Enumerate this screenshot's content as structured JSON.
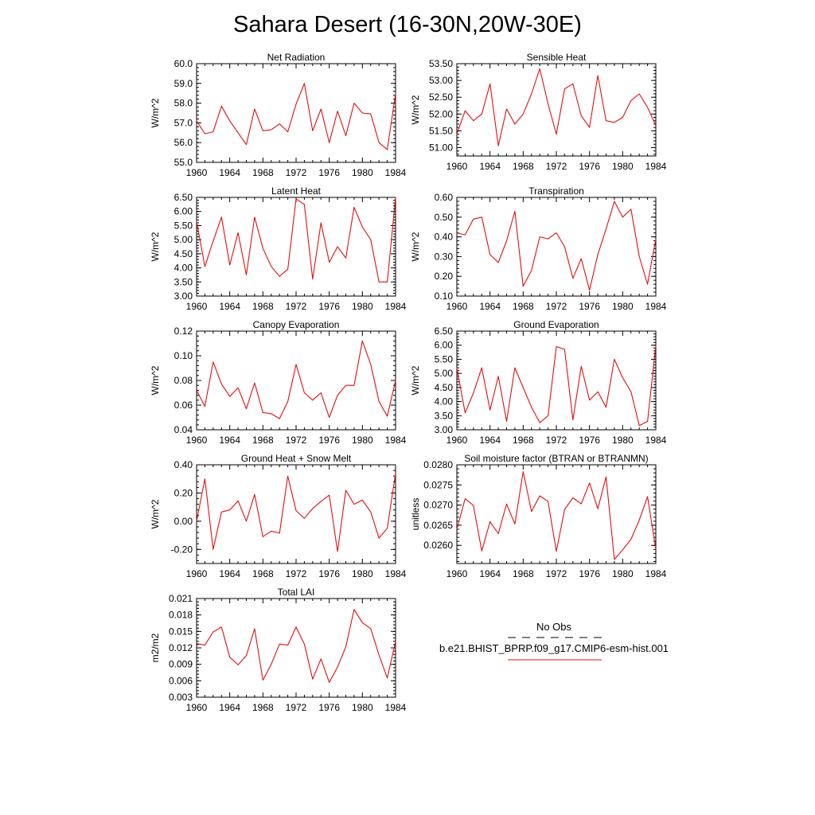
{
  "title": "Sahara Desert (16-30N,20W-30E)",
  "colors": {
    "model": "#e01010",
    "obs": "#000000"
  },
  "legend": {
    "obs_label": "No Obs",
    "model_label": "b.e21.BHIST_BPRP.f09_g17.CMIP6-esm-hist.001"
  },
  "chart_data": [
    {
      "type": "line",
      "title": "Net Radiation",
      "ylabel": "W/m^2",
      "xlim": [
        1960,
        1984
      ],
      "ylim": [
        55.0,
        60.0
      ],
      "xticks": [
        "1960",
        "1964",
        "1968",
        "1972",
        "1976",
        "1980",
        "1984"
      ],
      "yticks": [
        "55.0",
        "56.0",
        "57.0",
        "58.0",
        "59.0",
        "60.0"
      ],
      "x": [
        1960,
        1961,
        1962,
        1963,
        1964,
        1965,
        1966,
        1967,
        1968,
        1969,
        1970,
        1971,
        1972,
        1973,
        1974,
        1975,
        1976,
        1977,
        1978,
        1979,
        1980,
        1981,
        1982,
        1983,
        1984
      ],
      "series": [
        {
          "values": [
            57.1,
            56.45,
            56.55,
            57.85,
            57.1,
            56.5,
            55.9,
            57.7,
            56.6,
            56.65,
            56.95,
            56.55,
            57.95,
            59.0,
            56.6,
            57.7,
            56.0,
            57.6,
            56.35,
            58.0,
            57.5,
            57.45,
            56.0,
            55.65,
            58.5
          ]
        }
      ]
    },
    {
      "type": "line",
      "title": "Sensible Heat",
      "ylabel": "W/m^2",
      "xlim": [
        1960,
        1984
      ],
      "ylim": [
        50.75,
        53.5
      ],
      "xticks": [
        "1960",
        "1964",
        "1968",
        "1972",
        "1976",
        "1980",
        "1984"
      ],
      "yticks": [
        "51.00",
        "51.50",
        "52.00",
        "52.50",
        "53.00",
        "53.50"
      ],
      "x": [
        1960,
        1961,
        1962,
        1963,
        1964,
        1965,
        1966,
        1967,
        1968,
        1969,
        1970,
        1971,
        1972,
        1973,
        1974,
        1975,
        1976,
        1977,
        1978,
        1979,
        1980,
        1981,
        1982,
        1983,
        1984
      ],
      "series": [
        {
          "values": [
            51.4,
            52.1,
            51.8,
            52.0,
            52.9,
            51.05,
            52.15,
            51.7,
            52.0,
            52.6,
            53.35,
            52.3,
            51.4,
            52.75,
            52.9,
            51.95,
            51.6,
            53.15,
            51.8,
            51.75,
            51.9,
            52.4,
            52.6,
            52.2,
            51.65
          ]
        }
      ]
    },
    {
      "type": "line",
      "title": "Latent Heat",
      "ylabel": "W/m^2",
      "xlim": [
        1960,
        1984
      ],
      "ylim": [
        3.0,
        6.5
      ],
      "xticks": [
        "1960",
        "1964",
        "1968",
        "1972",
        "1976",
        "1980",
        "1984"
      ],
      "yticks": [
        "3.00",
        "3.50",
        "4.00",
        "4.50",
        "5.00",
        "5.50",
        "6.00",
        "6.50"
      ],
      "x": [
        1960,
        1961,
        1962,
        1963,
        1964,
        1965,
        1966,
        1967,
        1968,
        1969,
        1970,
        1971,
        1972,
        1973,
        1974,
        1975,
        1976,
        1977,
        1978,
        1979,
        1980,
        1981,
        1982,
        1983,
        1984
      ],
      "series": [
        {
          "values": [
            5.65,
            4.05,
            4.95,
            5.8,
            4.1,
            5.25,
            3.75,
            5.8,
            4.7,
            4.05,
            3.7,
            3.95,
            6.45,
            6.25,
            3.6,
            5.6,
            4.2,
            4.75,
            4.35,
            6.15,
            5.45,
            5.0,
            3.5,
            3.5,
            6.5
          ]
        }
      ]
    },
    {
      "type": "line",
      "title": "Transpiration",
      "ylabel": "W/m^2",
      "xlim": [
        1960,
        1984
      ],
      "ylim": [
        0.1,
        0.6
      ],
      "xticks": [
        "1960",
        "1964",
        "1968",
        "1972",
        "1976",
        "1980",
        "1984"
      ],
      "yticks": [
        "0.10",
        "0.20",
        "0.30",
        "0.40",
        "0.50",
        "0.60"
      ],
      "x": [
        1960,
        1961,
        1962,
        1963,
        1964,
        1965,
        1966,
        1967,
        1968,
        1969,
        1970,
        1971,
        1972,
        1973,
        1974,
        1975,
        1976,
        1977,
        1978,
        1979,
        1980,
        1981,
        1982,
        1983,
        1984
      ],
      "series": [
        {
          "values": [
            0.42,
            0.41,
            0.49,
            0.5,
            0.31,
            0.27,
            0.38,
            0.53,
            0.15,
            0.23,
            0.4,
            0.39,
            0.42,
            0.35,
            0.19,
            0.29,
            0.13,
            0.31,
            0.44,
            0.58,
            0.5,
            0.54,
            0.3,
            0.16,
            0.39
          ]
        }
      ]
    },
    {
      "type": "line",
      "title": "Canopy Evaporation",
      "ylabel": "W/m^2",
      "xlim": [
        1960,
        1984
      ],
      "ylim": [
        0.04,
        0.12
      ],
      "xticks": [
        "1960",
        "1964",
        "1968",
        "1972",
        "1976",
        "1980",
        "1984"
      ],
      "yticks": [
        "0.04",
        "0.06",
        "0.08",
        "0.10",
        "0.12"
      ],
      "x": [
        1960,
        1961,
        1962,
        1963,
        1964,
        1965,
        1966,
        1967,
        1968,
        1969,
        1970,
        1971,
        1972,
        1973,
        1974,
        1975,
        1976,
        1977,
        1978,
        1979,
        1980,
        1981,
        1982,
        1983,
        1984
      ],
      "series": [
        {
          "values": [
            0.072,
            0.059,
            0.095,
            0.077,
            0.067,
            0.074,
            0.057,
            0.078,
            0.054,
            0.053,
            0.049,
            0.063,
            0.093,
            0.07,
            0.064,
            0.07,
            0.05,
            0.068,
            0.076,
            0.076,
            0.112,
            0.093,
            0.063,
            0.051,
            0.08
          ]
        }
      ]
    },
    {
      "type": "line",
      "title": "Ground Evaporation",
      "ylabel": "W/m^2",
      "xlim": [
        1960,
        1984
      ],
      "ylim": [
        3.0,
        6.5
      ],
      "xticks": [
        "1960",
        "1964",
        "1968",
        "1972",
        "1976",
        "1980",
        "1984"
      ],
      "yticks": [
        "3.00",
        "3.50",
        "4.00",
        "4.50",
        "5.00",
        "5.50",
        "6.00",
        "6.50"
      ],
      "x": [
        1960,
        1961,
        1962,
        1963,
        1964,
        1965,
        1966,
        1967,
        1968,
        1969,
        1970,
        1971,
        1972,
        1973,
        1974,
        1975,
        1976,
        1977,
        1978,
        1979,
        1980,
        1981,
        1982,
        1983,
        1984
      ],
      "series": [
        {
          "values": [
            5.2,
            3.6,
            4.3,
            5.2,
            3.7,
            4.9,
            3.3,
            5.2,
            4.5,
            3.8,
            3.25,
            3.5,
            5.95,
            5.85,
            3.35,
            5.25,
            4.05,
            4.35,
            3.8,
            5.5,
            4.85,
            4.35,
            3.15,
            3.3,
            6.0
          ]
        }
      ]
    },
    {
      "type": "line",
      "title": "Ground Heat + Snow Melt",
      "ylabel": "W/m^2",
      "xlim": [
        1960,
        1984
      ],
      "ylim": [
        -0.3,
        0.4
      ],
      "xticks": [
        "1960",
        "1964",
        "1968",
        "1972",
        "1976",
        "1980",
        "1984"
      ],
      "yticks": [
        "-0.20",
        "0.00",
        "0.20",
        "0.40"
      ],
      "x": [
        1960,
        1961,
        1962,
        1963,
        1964,
        1965,
        1966,
        1967,
        1968,
        1969,
        1970,
        1971,
        1972,
        1973,
        1974,
        1975,
        1976,
        1977,
        1978,
        1979,
        1980,
        1981,
        1982,
        1983,
        1984
      ],
      "series": [
        {
          "values": [
            0.0,
            0.3,
            -0.2,
            0.065,
            0.08,
            0.145,
            0.0,
            0.19,
            -0.11,
            -0.07,
            -0.085,
            0.32,
            0.075,
            0.02,
            0.09,
            0.14,
            0.185,
            -0.215,
            0.22,
            0.12,
            0.15,
            0.065,
            -0.12,
            -0.05,
            0.34
          ]
        }
      ]
    },
    {
      "type": "line",
      "title": "Soil moisture factor (BTRAN or BTRANMN)",
      "ylabel": "unitless",
      "xlim": [
        1960,
        1984
      ],
      "ylim": [
        0.02555,
        0.028
      ],
      "xticks": [
        "1960",
        "1964",
        "1968",
        "1972",
        "1976",
        "1980",
        "1984"
      ],
      "yticks": [
        "0.0260",
        "0.0265",
        "0.0270",
        "0.0275",
        "0.0280"
      ],
      "x": [
        1960,
        1961,
        1962,
        1963,
        1964,
        1965,
        1966,
        1967,
        1968,
        1969,
        1970,
        1971,
        1972,
        1973,
        1974,
        1975,
        1976,
        1977,
        1978,
        1979,
        1980,
        1981,
        1982,
        1983,
        1984
      ],
      "series": [
        {
          "values": [
            0.0264,
            0.02716,
            0.02699,
            0.02586,
            0.02659,
            0.02629,
            0.02703,
            0.02653,
            0.02783,
            0.02684,
            0.02723,
            0.02709,
            0.02585,
            0.02689,
            0.02718,
            0.02703,
            0.02755,
            0.02691,
            0.0277,
            0.02565,
            0.02589,
            0.02615,
            0.02663,
            0.02721,
            0.0259
          ]
        }
      ]
    },
    {
      "type": "line",
      "title": "Total LAI",
      "ylabel": "m2/m2",
      "xlim": [
        1960,
        1984
      ],
      "ylim": [
        0.003,
        0.021
      ],
      "xticks": [
        "1960",
        "1964",
        "1968",
        "1972",
        "1976",
        "1980",
        "1984"
      ],
      "yticks": [
        "0.003",
        "0.006",
        "0.009",
        "0.012",
        "0.015",
        "0.018",
        "0.021"
      ],
      "x": [
        1960,
        1961,
        1962,
        1963,
        1964,
        1965,
        1966,
        1967,
        1968,
        1969,
        1970,
        1971,
        1972,
        1973,
        1974,
        1975,
        1976,
        1977,
        1978,
        1979,
        1980,
        1981,
        1982,
        1983,
        1984
      ],
      "series": [
        {
          "values": [
            0.0128,
            0.0125,
            0.0149,
            0.0158,
            0.0103,
            0.0089,
            0.0106,
            0.0155,
            0.0061,
            0.009,
            0.0127,
            0.0125,
            0.0158,
            0.0127,
            0.0063,
            0.01,
            0.0057,
            0.0085,
            0.0122,
            0.019,
            0.0166,
            0.0155,
            0.0107,
            0.0065,
            0.0132
          ]
        }
      ]
    }
  ]
}
